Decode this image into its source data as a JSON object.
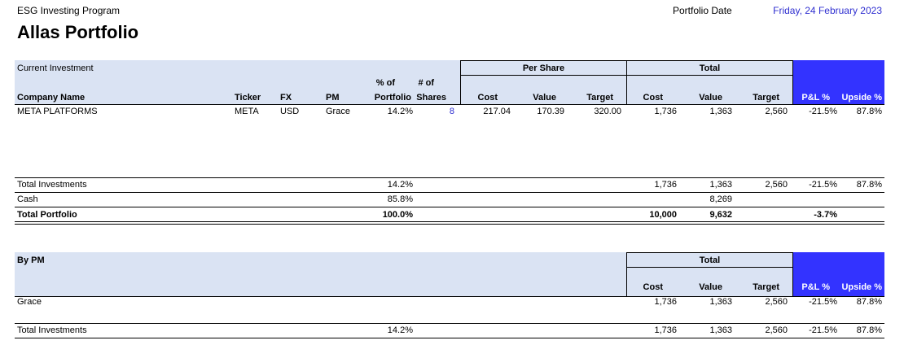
{
  "header": {
    "program": "ESG Investing Program",
    "portfolio_name": "Allas Portfolio",
    "portfolio_date_label": "Portfolio Date",
    "portfolio_date": "Friday, 24 February 2023"
  },
  "holdings": {
    "section_label": "Current Investment",
    "group_per_share": "Per Share",
    "group_total": "Total",
    "columns": {
      "company": "Company Name",
      "ticker": "Ticker",
      "fx": "FX",
      "pm": "PM",
      "pct_line1": "% of",
      "pct_line2": "Portfolio",
      "shares_line1": "# of",
      "shares_line2": "Shares",
      "ps_cost": "Cost",
      "ps_value": "Value",
      "ps_target": "Target",
      "t_cost": "Cost",
      "t_value": "Value",
      "t_target": "Target",
      "pl": "P&L %",
      "upside": "Upside %"
    },
    "rows": [
      {
        "company": "META PLATFORMS",
        "ticker": "META",
        "fx": "USD",
        "pm": "Grace",
        "pct": "14.2%",
        "shares": "8",
        "ps_cost": "217.04",
        "ps_value": "170.39",
        "ps_target": "320.00",
        "t_cost": "1,736",
        "t_value": "1,363",
        "t_target": "2,560",
        "pl": "-21.5%",
        "upside": "87.8%"
      }
    ]
  },
  "totals": {
    "investments": {
      "label": "Total Investments",
      "pct": "14.2%",
      "t_cost": "1,736",
      "t_value": "1,363",
      "t_target": "2,560",
      "pl": "-21.5%",
      "upside": "87.8%"
    },
    "cash": {
      "label": "Cash",
      "pct": "85.8%",
      "t_value": "8,269"
    },
    "portfolio": {
      "label": "Total Portfolio",
      "pct": "100.0%",
      "t_cost": "10,000",
      "t_value": "9,632",
      "pl": "-3.7%"
    }
  },
  "by_pm": {
    "section_label": "By PM",
    "group_total": "Total",
    "columns": {
      "t_cost": "Cost",
      "t_value": "Value",
      "t_target": "Target",
      "pl": "P&L %",
      "upside": "Upside %"
    },
    "rows": [
      {
        "pm": "Grace",
        "t_cost": "1,736",
        "t_value": "1,363",
        "t_target": "2,560",
        "pl": "-21.5%",
        "upside": "87.8%"
      }
    ],
    "total": {
      "label": "Total Investments",
      "pct": "14.2%",
      "t_cost": "1,736",
      "t_value": "1,363",
      "t_target": "2,560",
      "pl": "-21.5%",
      "upside": "87.8%"
    }
  },
  "colors": {
    "header_band": "#dae3f3",
    "metric_band": "#3333ff",
    "date_text": "#2f2fd0"
  }
}
